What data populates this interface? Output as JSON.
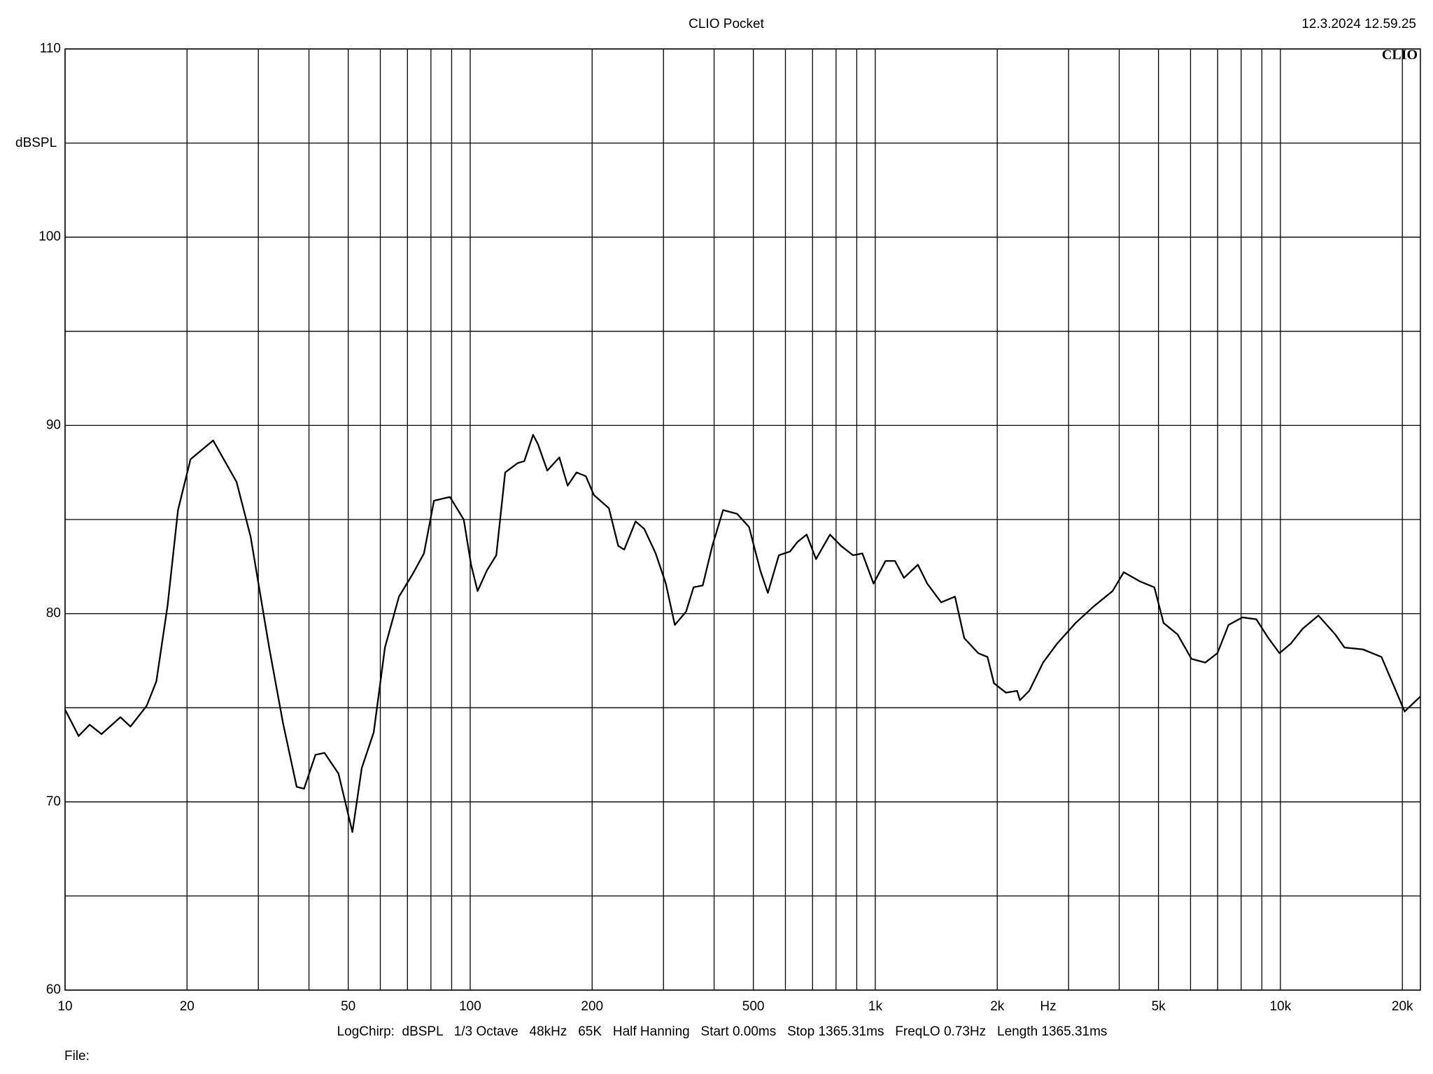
{
  "chart_data": {
    "type": "line",
    "title": "CLIO Pocket",
    "timestamp": "12.3.2024 12.59.25",
    "logo": "CLIO",
    "y_label": "dBSPL",
    "x_label": "Hz",
    "settings": "LogChirp:  dBSPL   1/3 Octave   48kHz   65K   Half Hanning   Start 0.00ms   Stop 1365.31ms   FreqLO 0.73Hz   Length 1365.31ms",
    "file_label": "File:",
    "x_scale": "log",
    "grid": true,
    "xlim": [
      10,
      22160
    ],
    "ylim": [
      60,
      110
    ],
    "xticks": [
      10,
      20,
      50,
      100,
      200,
      500,
      {
        "value": 1000,
        "label": "1k"
      },
      {
        "value": 2000,
        "label": "2k"
      },
      {
        "value": 5000,
        "label": "5k"
      },
      {
        "value": 10000,
        "label": "10k"
      },
      {
        "value": 20000,
        "label": "20k"
      }
    ],
    "x_minor_grid": [
      30,
      40,
      60,
      70,
      80,
      90,
      300,
      400,
      600,
      700,
      800,
      900,
      3000,
      4000,
      6000,
      7000,
      8000,
      9000
    ],
    "yticks": [
      60,
      70,
      80,
      90,
      100,
      110
    ],
    "y_minor_grid": [
      65,
      75,
      85,
      95,
      105
    ],
    "series": [
      {
        "name": "SPL",
        "color": "#000000",
        "x": [
          10,
          10.8,
          11.5,
          12.3,
          13.7,
          14.5,
          15.9,
          16.8,
          17.9,
          19.0,
          20.4,
          23.2,
          26.5,
          28.7,
          31.9,
          34.5,
          37.3,
          38.9,
          41.5,
          43.7,
          47.3,
          51.2,
          54.0,
          57.8,
          61.6,
          66.7,
          72.1,
          76.9,
          81.4,
          89.1,
          96.4,
          100.5,
          104.3,
          110,
          116,
          122,
          131,
          136,
          143,
          147,
          155,
          166,
          174,
          183,
          193,
          202,
          220,
          232,
          240,
          256,
          269,
          287,
          304,
          320,
          341,
          356,
          375,
          396,
          421,
          456,
          488,
          520,
          543,
          578,
          616,
          642,
          677,
          714,
          773,
          823,
          881,
          929,
          990,
          1060,
          1118,
          1177,
          1274,
          1343,
          1454,
          1573,
          1658,
          1795,
          1892,
          1963,
          2102,
          2239,
          2275,
          2399,
          2595,
          2809,
          3121,
          3467,
          3852,
          4105,
          4513,
          4884,
          5148,
          5572,
          6030,
          6525,
          6990,
          7447,
          8057,
          8721,
          9339,
          9947,
          10600,
          11350,
          12410,
          13650,
          14390,
          15990,
          17760,
          19020,
          20260,
          22160
        ],
        "values": [
          74.9,
          73.5,
          74.1,
          73.6,
          74.5,
          74.0,
          75.1,
          76.4,
          80.4,
          85.5,
          88.2,
          89.2,
          87.0,
          84.1,
          78.2,
          74.2,
          70.8,
          70.7,
          72.5,
          72.6,
          71.5,
          68.4,
          71.8,
          73.7,
          78.2,
          80.9,
          82.1,
          83.2,
          86.0,
          86.2,
          85.0,
          82.6,
          81.2,
          82.3,
          83.1,
          87.5,
          88.0,
          88.1,
          89.5,
          89.0,
          87.6,
          88.3,
          86.8,
          87.5,
          87.3,
          86.3,
          85.6,
          83.6,
          83.4,
          84.9,
          84.5,
          83.2,
          81.6,
          79.4,
          80.1,
          81.4,
          81.5,
          83.6,
          85.5,
          85.3,
          84.6,
          82.3,
          81.1,
          83.1,
          83.3,
          83.8,
          84.2,
          82.9,
          84.2,
          83.6,
          83.1,
          83.2,
          81.6,
          82.8,
          82.8,
          81.9,
          82.6,
          81.6,
          80.6,
          80.9,
          78.7,
          77.9,
          77.7,
          76.3,
          75.8,
          75.9,
          75.4,
          75.9,
          77.4,
          78.4,
          79.5,
          80.4,
          81.2,
          82.2,
          81.7,
          81.4,
          79.5,
          78.9,
          77.6,
          77.4,
          77.9,
          79.4,
          79.8,
          79.7,
          78.7,
          77.9,
          78.4,
          79.2,
          79.9,
          78.9,
          78.2,
          78.1,
          77.7,
          76.2,
          74.8,
          75.6
        ]
      }
    ]
  }
}
